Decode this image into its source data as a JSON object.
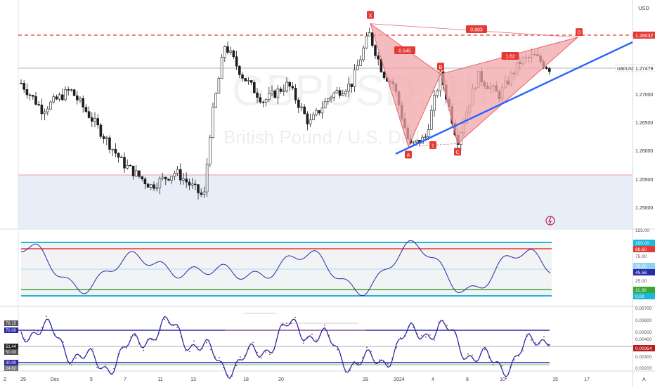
{
  "currency": "USD",
  "watermark": {
    "symbol": "GBPUSD, 1h",
    "name": "British Pound / U.S. Dollar"
  },
  "colors": {
    "bull": "#1e1e1e",
    "bear": "#1e1e1e",
    "pattern_fill": "#f2a6aa",
    "pattern_stroke": "#e3646c",
    "trendline": "#2962ff",
    "target_line": "#e53935",
    "osc_line": "#2a2aa8",
    "cyan_band": "#1fb6d9",
    "red_level": "#e53935",
    "green_level": "#3aa53a"
  },
  "price_axis": {
    "ticks": [
      "1.27000",
      "1.26500",
      "1.26000",
      "1.25500",
      "1.25000"
    ],
    "current_price": "1.27479",
    "current_symbol": "GBPUSD",
    "target_price": "1.28032"
  },
  "pattern": {
    "points": [
      {
        "label": "X",
        "price": 1.2827
      },
      {
        "label": "A",
        "price": 1.261
      },
      {
        "label": "B",
        "price": 1.2738
      },
      {
        "label": "C",
        "price": 1.2615
      },
      {
        "label": "D",
        "price": 1.2803
      }
    ],
    "extra_label": "1",
    "ratios": [
      "0.545",
      "0.883",
      "1.62"
    ]
  },
  "oscillator1": {
    "levels": [
      "100.00",
      "88.60",
      "30.00",
      "11.30",
      "0.00"
    ],
    "current": "45.58",
    "axis_ticks": [
      "125.00",
      "75.00",
      "25.00"
    ]
  },
  "oscillator2": {
    "left_labels": [
      "78.15",
      "70.00",
      "51.44",
      "50.00",
      "30.00",
      "24.62"
    ],
    "right_ticks": [
      "0.00700",
      "0.00600",
      "0.00500",
      "0.00400",
      "0.00300",
      "0.00200"
    ],
    "current": "0.00354"
  },
  "time_axis": {
    "labels": [
      "29",
      "Dec",
      "5",
      "7",
      "11",
      "13",
      "18",
      "20",
      "28",
      "2024",
      "4",
      "8",
      "10",
      "15",
      "17"
    ],
    "corner_left": "Z",
    "corner_right": "A"
  }
}
